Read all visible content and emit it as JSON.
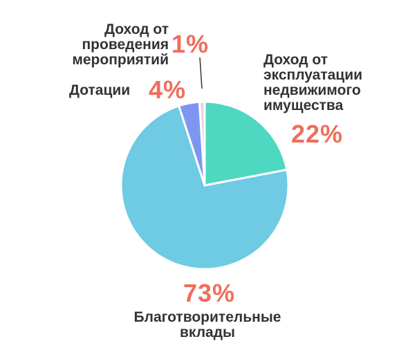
{
  "chart_data": {
    "type": "pie",
    "slices": [
      {
        "label": "Доход от эксплуатации недвижимого имущества",
        "value": 22,
        "value_label": "22%",
        "color": "#4fd8c1"
      },
      {
        "label": "Благотворительные вклады",
        "value": 73,
        "value_label": "73%",
        "color": "#6ecbe3"
      },
      {
        "label": "Дотации",
        "value": 4,
        "value_label": "4%",
        "color": "#7f96f0"
      },
      {
        "label": "Доход от проведения мероприятий",
        "value": 1,
        "value_label": "1%",
        "color": "#ead1e6"
      }
    ],
    "label_text": [
      "Доход от\nэксплуатации\nнедвижимого\nимущества",
      "Благотворительные\nвклады",
      "Дотации",
      "Доход от\nпроведения\nмероприятий"
    ]
  }
}
